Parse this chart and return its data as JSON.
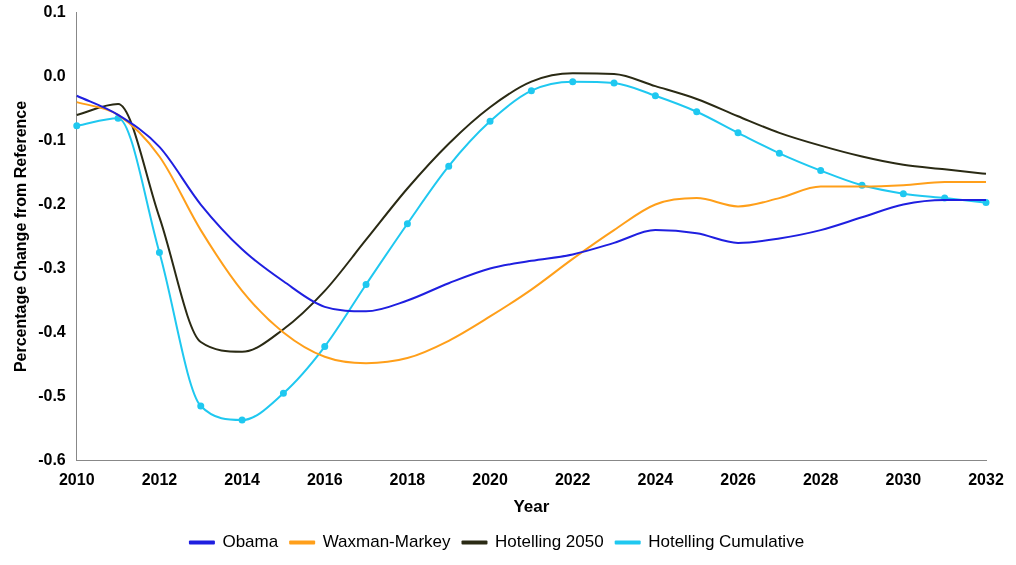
{
  "chart_data": {
    "type": "line",
    "xlabel": "Year",
    "ylabel": "Percentage Change from Reference",
    "x": [
      2010,
      2011,
      2012,
      2013,
      2014,
      2015,
      2016,
      2017,
      2018,
      2019,
      2020,
      2021,
      2022,
      2023,
      2024,
      2025,
      2026,
      2027,
      2028,
      2029,
      2030,
      2031,
      2032
    ],
    "series": [
      {
        "name": "Obama",
        "color": "#1f1fe0",
        "marker": "none",
        "values": [
          -0.03,
          -0.06,
          -0.11,
          -0.2,
          -0.27,
          -0.32,
          -0.36,
          -0.367,
          -0.35,
          -0.323,
          -0.3,
          -0.288,
          -0.278,
          -0.26,
          -0.24,
          -0.245,
          -0.26,
          -0.253,
          -0.24,
          -0.22,
          -0.2,
          -0.193,
          -0.193
        ]
      },
      {
        "name": "Waxman-Markey",
        "color": "#ff9f1a",
        "marker": "none",
        "values": [
          -0.04,
          -0.06,
          -0.125,
          -0.24,
          -0.335,
          -0.4,
          -0.438,
          -0.448,
          -0.44,
          -0.413,
          -0.375,
          -0.333,
          -0.285,
          -0.24,
          -0.2,
          -0.19,
          -0.203,
          -0.19,
          -0.172,
          -0.172,
          -0.17,
          -0.165,
          -0.165
        ]
      },
      {
        "name": "Hotelling 2050",
        "color": "#2a2a14",
        "marker": "none",
        "values": [
          -0.06,
          -0.043,
          -0.22,
          -0.415,
          -0.43,
          -0.395,
          -0.335,
          -0.255,
          -0.175,
          -0.105,
          -0.048,
          -0.008,
          0.005,
          0.004,
          -0.015,
          -0.035,
          -0.062,
          -0.088,
          -0.108,
          -0.125,
          -0.138,
          -0.145,
          -0.152
        ]
      },
      {
        "name": "Hotelling Cumulative",
        "color": "#1fc8f0",
        "marker": "circle",
        "values": [
          -0.077,
          -0.065,
          -0.275,
          -0.515,
          -0.537,
          -0.495,
          -0.422,
          -0.325,
          -0.23,
          -0.14,
          -0.07,
          -0.022,
          -0.008,
          -0.01,
          -0.03,
          -0.055,
          -0.088,
          -0.12,
          -0.147,
          -0.17,
          -0.183,
          -0.19,
          -0.197
        ]
      }
    ],
    "xlim": [
      2010,
      2032
    ],
    "xticks": [
      2010,
      2012,
      2014,
      2016,
      2018,
      2020,
      2022,
      2024,
      2026,
      2028,
      2030,
      2032
    ],
    "ylim": [
      -0.6,
      0.1
    ],
    "yticks": [
      -0.6,
      -0.5,
      -0.4,
      -0.3,
      -0.2,
      -0.1,
      {
        "value": 0,
        "label": "0.0"
      },
      0.1
    ],
    "grid": false,
    "legend": "bottom"
  }
}
